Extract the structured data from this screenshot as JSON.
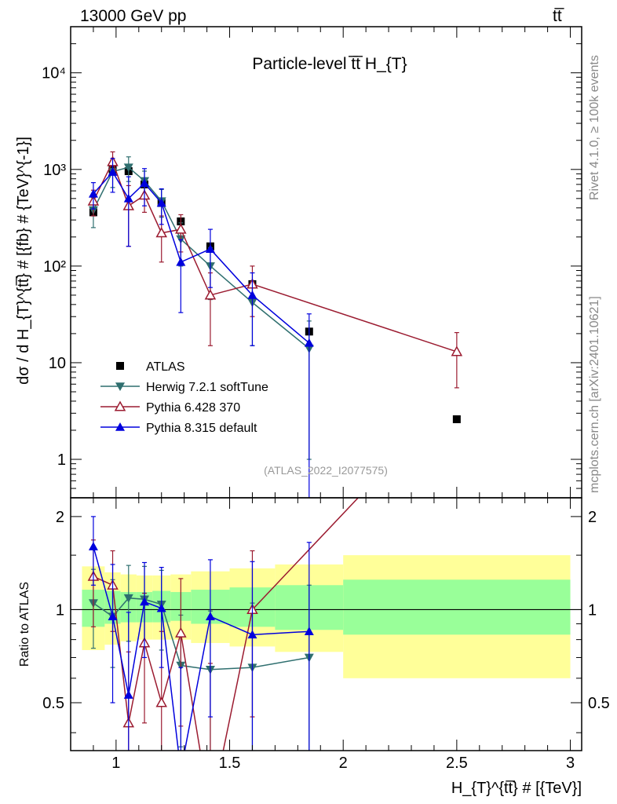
{
  "header": {
    "left": "13000 GeV pp",
    "right": "tt̅"
  },
  "side_labels": {
    "rivet": "Rivet 4.1.0, ≥ 100k events",
    "mcplots": "mcplots.cern.ch [arXiv:2401.10621]"
  },
  "chart_data": {
    "type": "scatter",
    "title": "Particle-level t̅t̅  H_{T}",
    "xlabel": "H_{T}^{tt̅} # [{TeV}]",
    "ylabel": "dσ / d H_{T}^{tt̅} # [{fb} # {TeV}^{-1}]",
    "ratio_ylabel": "Ratio to ATLAS",
    "watermark": "(ATLAS_2022_I2077575)",
    "xlim": [
      0.8,
      3.05
    ],
    "ylim_log": [
      0.4,
      30000
    ],
    "ratio_ylim": [
      0.35,
      2.3
    ],
    "x_ticks": [
      1,
      1.5,
      2,
      2.5,
      3
    ],
    "x_tick_labels": [
      "1",
      "1.5",
      "2",
      "2.5",
      "3"
    ],
    "y_ticks": [
      1,
      10,
      100,
      1000,
      10000
    ],
    "y_tick_labels": [
      "1",
      "10",
      "10²",
      "10³",
      "10⁴"
    ],
    "ratio_ticks": [
      0.5,
      1,
      2
    ],
    "ratio_tick_labels": [
      "0.5",
      "1",
      "2"
    ],
    "bins": [
      [
        0.85,
        0.95
      ],
      [
        0.95,
        1.02
      ],
      [
        1.02,
        1.09
      ],
      [
        1.09,
        1.16
      ],
      [
        1.16,
        1.24
      ],
      [
        1.24,
        1.33
      ],
      [
        1.33,
        1.5
      ],
      [
        1.5,
        1.7
      ],
      [
        1.7,
        2.0
      ],
      [
        2.0,
        3.0
      ]
    ],
    "band_green": [
      [
        0.88,
        1.16
      ],
      [
        0.9,
        1.15
      ],
      [
        0.91,
        1.14
      ],
      [
        0.91,
        1.14
      ],
      [
        0.91,
        1.15
      ],
      [
        0.92,
        1.14
      ],
      [
        0.9,
        1.16
      ],
      [
        0.88,
        1.18
      ],
      [
        0.86,
        1.2
      ],
      [
        0.83,
        1.25
      ]
    ],
    "band_yellow": [
      [
        0.74,
        1.38
      ],
      [
        0.77,
        1.32
      ],
      [
        0.79,
        1.3
      ],
      [
        0.8,
        1.29
      ],
      [
        0.8,
        1.29
      ],
      [
        0.8,
        1.3
      ],
      [
        0.78,
        1.33
      ],
      [
        0.76,
        1.36
      ],
      [
        0.73,
        1.4
      ],
      [
        0.6,
        1.5
      ]
    ],
    "series": [
      {
        "name": "ATLAS",
        "marker": "square",
        "color": "#000000",
        "x": [
          0.9,
          0.985,
          1.055,
          1.125,
          1.2,
          1.285,
          1.415,
          1.6,
          1.85,
          2.5
        ],
        "y": [
          360,
          1000,
          960,
          700,
          450,
          290,
          160,
          65,
          21,
          2.6
        ],
        "ratio": [
          1,
          1,
          1,
          1,
          1,
          1,
          1,
          1,
          1,
          1
        ]
      },
      {
        "name": "Herwig 7.2.1 softTune",
        "marker": "triangle-down",
        "color": "#2f6f6f",
        "x": [
          0.9,
          0.985,
          1.055,
          1.125,
          1.2,
          1.285,
          1.415,
          1.6,
          1.85
        ],
        "y": [
          380,
          950,
          1050,
          760,
          470,
          190,
          100,
          42,
          14
        ],
        "y_err_lo": [
          130,
          300,
          300,
          200,
          150,
          90,
          55,
          27,
          13
        ],
        "y_err_hi": [
          130,
          300,
          300,
          200,
          150,
          90,
          55,
          27,
          13
        ],
        "ratio": [
          1.05,
          0.95,
          1.09,
          1.08,
          1.04,
          0.66,
          0.64,
          0.65,
          0.7
        ],
        "ratio_err": [
          0.3,
          0.3,
          0.3,
          0.3,
          0.3,
          0.3,
          0.35,
          0.4,
          0.5
        ]
      },
      {
        "name": "Pythia 6.428 370",
        "marker": "triangle-open",
        "color": "#9b1b30",
        "x": [
          0.9,
          0.985,
          1.055,
          1.125,
          1.2,
          1.285,
          1.415,
          1.6,
          2.5
        ],
        "y": [
          470,
          1200,
          420,
          540,
          220,
          240,
          50,
          65,
          13
        ],
        "y_err_lo": [
          140,
          320,
          260,
          180,
          110,
          100,
          35,
          35,
          7.5
        ],
        "y_err_hi": [
          140,
          320,
          260,
          180,
          110,
          100,
          35,
          35,
          7.5
        ],
        "ratio": [
          1.28,
          1.2,
          0.43,
          0.78,
          0.5,
          0.84,
          0.22,
          1.0,
          5.0
        ],
        "ratio_err": [
          0.4,
          0.35,
          0.3,
          0.35,
          0.35,
          0.42,
          0.45,
          0.55,
          2.5
        ]
      },
      {
        "name": "Pythia 8.315 default",
        "marker": "triangle-up",
        "color": "#0000dd",
        "x": [
          0.9,
          0.985,
          1.055,
          1.125,
          1.2,
          1.285,
          1.415,
          1.6,
          1.85
        ],
        "y": [
          560,
          940,
          500,
          720,
          450,
          110,
          150,
          50,
          16
        ],
        "y_err_lo": [
          170,
          360,
          340,
          300,
          180,
          77,
          90,
          35,
          16
        ],
        "y_err_hi": [
          170,
          360,
          340,
          300,
          180,
          77,
          90,
          35,
          16
        ],
        "ratio": [
          1.6,
          0.95,
          0.53,
          1.06,
          1.01,
          0.3,
          0.95,
          0.83,
          0.85
        ],
        "ratio_err": [
          0.4,
          0.45,
          0.45,
          0.36,
          0.36,
          0.35,
          0.5,
          0.6,
          0.8
        ]
      }
    ]
  }
}
